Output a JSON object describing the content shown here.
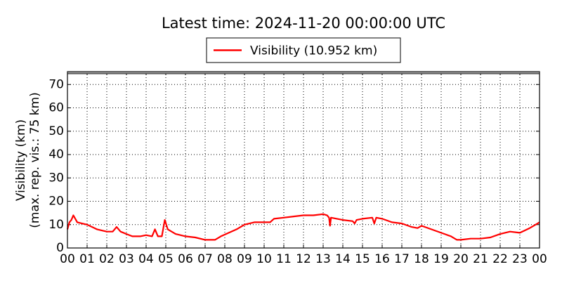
{
  "chart_data": {
    "type": "line",
    "title": "Latest time: 2024-11-20 00:00:00 UTC",
    "ylabel": [
      "Visibility (km)",
      "(max. rep. vis.: 75 km)"
    ],
    "x": [
      0.0,
      0.1,
      0.2,
      0.3,
      0.5,
      1.0,
      1.5,
      2.0,
      2.3,
      2.5,
      2.7,
      3.0,
      3.3,
      3.7,
      4.0,
      4.3,
      4.45,
      4.6,
      4.8,
      4.95,
      5.1,
      5.5,
      6.0,
      6.5,
      7.0,
      7.5,
      7.8,
      8.2,
      8.6,
      9.0,
      9.5,
      10.0,
      10.3,
      10.5,
      11.0,
      11.5,
      12.0,
      12.5,
      13.0,
      13.2,
      13.3,
      13.35,
      13.4,
      14.0,
      14.5,
      14.6,
      14.7,
      15.0,
      15.5,
      15.6,
      15.7,
      16.0,
      16.5,
      17.0,
      17.5,
      17.8,
      18.0,
      18.5,
      19.0,
      19.5,
      19.8,
      20.0,
      20.5,
      21.0,
      21.5,
      22.0,
      22.5,
      23.0,
      23.5,
      23.8,
      24.0
    ],
    "series": [
      {
        "name": "Visibility (10.952 km)",
        "color": "#ff0000",
        "values": [
          8,
          11,
          12,
          14,
          11,
          10,
          8,
          7,
          7,
          9,
          7,
          6,
          5,
          5,
          5.5,
          5,
          8,
          5,
          5,
          12,
          8,
          6,
          5,
          4.5,
          3.5,
          3.5,
          5,
          6.5,
          8,
          10,
          11,
          11,
          11,
          12.5,
          13,
          13.5,
          14,
          14,
          14.5,
          14,
          13,
          9.5,
          13,
          12,
          11.5,
          10.5,
          12,
          12.5,
          13,
          10.5,
          13,
          12.5,
          11,
          10.5,
          9,
          8.5,
          9.5,
          8,
          6.5,
          5,
          3.5,
          3.5,
          4,
          4,
          4.5,
          6,
          7,
          6.5,
          8.5,
          10,
          11
        ]
      }
    ],
    "xlim": [
      0,
      24
    ],
    "xticks": [
      {
        "value": 0,
        "label": "00"
      },
      {
        "value": 1,
        "label": "01"
      },
      {
        "value": 2,
        "label": "02"
      },
      {
        "value": 3,
        "label": "03"
      },
      {
        "value": 4,
        "label": "04"
      },
      {
        "value": 5,
        "label": "05"
      },
      {
        "value": 6,
        "label": "06"
      },
      {
        "value": 7,
        "label": "07"
      },
      {
        "value": 8,
        "label": "08"
      },
      {
        "value": 9,
        "label": "09"
      },
      {
        "value": 10,
        "label": "10"
      },
      {
        "value": 11,
        "label": "11"
      },
      {
        "value": 12,
        "label": "12"
      },
      {
        "value": 13,
        "label": "13"
      },
      {
        "value": 14,
        "label": "14"
      },
      {
        "value": 15,
        "label": "15"
      },
      {
        "value": 16,
        "label": "16"
      },
      {
        "value": 17,
        "label": "17"
      },
      {
        "value": 18,
        "label": "18"
      },
      {
        "value": 19,
        "label": "19"
      },
      {
        "value": 20,
        "label": "20"
      },
      {
        "value": 21,
        "label": "21"
      },
      {
        "value": 22,
        "label": "22"
      },
      {
        "value": 23,
        "label": "23"
      },
      {
        "value": 24,
        "label": "00"
      }
    ],
    "ylim": [
      0,
      75.5
    ],
    "yticks": [
      0,
      10,
      20,
      30,
      40,
      50,
      60,
      70
    ],
    "grid": true,
    "legend": "top"
  }
}
